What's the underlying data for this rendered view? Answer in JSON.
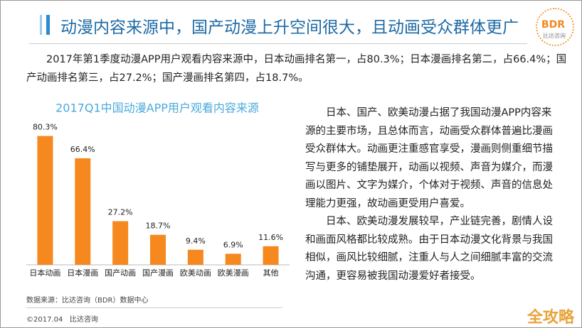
{
  "header": {
    "title": "动漫内容来源中，国产动漫上升空间很大，且动画受众群体更广",
    "logo": "BDR",
    "logo_sub": "比达咨询"
  },
  "intro": "2017年第1季度动漫APP用户观看内容来源中，日本动画排名第一，占80.3%；日本漫画排名第二，占66.4%；国产动画排名第三，占27.2%；国产漫画排名第四，占18.7%。",
  "chart_data": {
    "type": "bar",
    "title": "2017Q1中国动漫APP用户观看内容来源",
    "categories": [
      "日本动画",
      "日本漫画",
      "国产动画",
      "国产漫画",
      "欧美动画",
      "欧美漫画",
      "其他"
    ],
    "values": [
      80.3,
      66.4,
      27.2,
      18.7,
      9.4,
      6.9,
      11.6
    ],
    "value_labels": [
      "80.3%",
      "66.4%",
      "27.2%",
      "18.7%",
      "9.4%",
      "6.9%",
      "11.6%"
    ],
    "color": "#f5891f"
  },
  "analysis": [
    "日本、国产、欧美动漫占据了我国动漫APP内容来源的主要市场，且总体而言，动画受众群体普遍比漫画受众群体大。动画更注重感官享受，漫画则侧重细节描写与更多的铺垫展开，动画以视频、声音为媒介，而漫画以图片、文字为媒介，个体对于视频、声音的信息处理能力更强，故动画更受用户喜爱。",
    "日本、欧美动漫发展较早，产业链完善，剧情人设和画面风格都比较成熟。由于日本动漫文化背景与我国相似，画风比较细腻，注重人与人之间细腻丰富的交流沟通，更容易被我国动漫爱好者接受。"
  ],
  "source": "数据来源：比达咨询（BDR）数据中心",
  "footer": "©2017.04   比达咨询",
  "watermark": "全攻略"
}
